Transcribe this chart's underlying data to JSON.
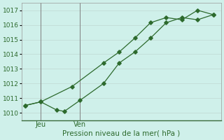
{
  "line1_x": [
    0,
    1,
    3,
    5,
    6,
    7,
    8,
    9,
    10,
    11,
    12
  ],
  "line1_y": [
    1010.5,
    1010.75,
    1011.8,
    1013.4,
    1014.15,
    1015.1,
    1016.15,
    1016.5,
    1016.35,
    1017.0,
    1016.7
  ],
  "line2_x": [
    0,
    1,
    2,
    2.5,
    3.5,
    5,
    6,
    7,
    8,
    9,
    10,
    11,
    12
  ],
  "line2_y": [
    1010.5,
    1010.75,
    1010.2,
    1010.1,
    1010.85,
    1012.0,
    1013.4,
    1014.15,
    1015.1,
    1016.15,
    1016.5,
    1016.35,
    1016.7
  ],
  "line_color": "#2d6a2d",
  "bg_color": "#cff0ea",
  "grid_color": "#c0d8d2",
  "axis_label": "Pression niveau de la mer( hPa )",
  "jeu_x": 1,
  "ven_x": 3.5,
  "day_labels": [
    "Jeu",
    "Ven"
  ],
  "ylim_min": 1009.5,
  "ylim_max": 1017.5,
  "yticks": [
    1010,
    1011,
    1012,
    1013,
    1014,
    1015,
    1016,
    1017
  ],
  "xlim_min": -0.2,
  "xlim_max": 12.5
}
